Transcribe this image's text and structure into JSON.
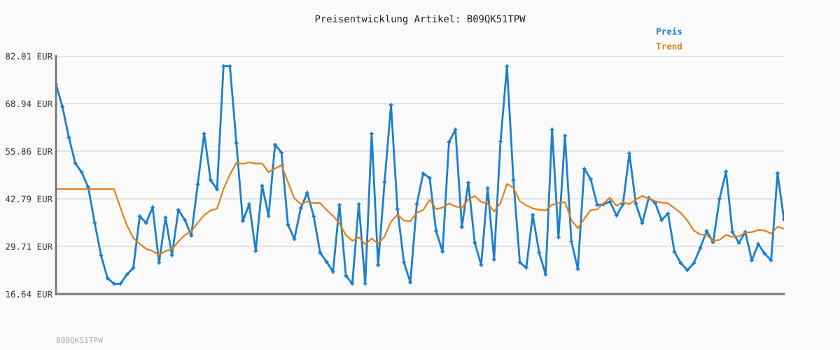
{
  "chart_data": {
    "type": "line",
    "title": "Preisentwicklung Artikel: B09QK51TPW",
    "categories": [
      null,
      null,
      null,
      null,
      null,
      null,
      null,
      null,
      null,
      null,
      null,
      null,
      null,
      null,
      null,
      null,
      null,
      null,
      null,
      null,
      null,
      null,
      null,
      null,
      null,
      null,
      null,
      null,
      null,
      null,
      null,
      null,
      null,
      null,
      null,
      null,
      null,
      null,
      null,
      null,
      null,
      null,
      null,
      null,
      null,
      null,
      null,
      null,
      null,
      null,
      null,
      null,
      null,
      null,
      null,
      null,
      null,
      null,
      null,
      null,
      null,
      null,
      null,
      null,
      null,
      null,
      null,
      null,
      null,
      null,
      null,
      null,
      null,
      null,
      null,
      null,
      null,
      null,
      null,
      null,
      null,
      null,
      null,
      null,
      null,
      null,
      null,
      null,
      null,
      null,
      null,
      null,
      null,
      null,
      null,
      null,
      null,
      null,
      null,
      null,
      null,
      null,
      null,
      null,
      null,
      null,
      null,
      null,
      null,
      null,
      null,
      null,
      null,
      null
    ],
    "series": [
      {
        "name": "Preis",
        "color": "#1a7fcf",
        "marker": "cross",
        "values": [
          74.19,
          68.1,
          59.64,
          52.53,
          50.03,
          45.99,
          36.18,
          27.21,
          20.99,
          19.46,
          19.46,
          21.96,
          23.81,
          37.98,
          36.18,
          40.48,
          25.23,
          37.66,
          27.28,
          39.71,
          37.02,
          32.72,
          46.76,
          60.67,
          47.91,
          45.41,
          79.19,
          79.19,
          58.1,
          36.7,
          41.31,
          28.43,
          46.37,
          38.04,
          57.65,
          55.48,
          35.67,
          31.76,
          40.22,
          44.45,
          37.98,
          27.98,
          25.48,
          22.73,
          41.12,
          21.64,
          19.46,
          41.31,
          19.46,
          60.67,
          24.59,
          47.34,
          68.55,
          39.97,
          25.35,
          19.84,
          41.31,
          49.77,
          48.49,
          33.94,
          28.3,
          58.36,
          61.82,
          35.03,
          47.21,
          30.74,
          24.65,
          45.67,
          26.12,
          58.55,
          79.19,
          47.91,
          25.29,
          23.88,
          38.36,
          27.98,
          21.96,
          61.82,
          32.15,
          60.09,
          31.06,
          23.49,
          51.05,
          48.17,
          41.12,
          41.25,
          42.02,
          38.17,
          41.25,
          55.28,
          41.5,
          36.06,
          43.04,
          41.63,
          36.95,
          38.75,
          28.17,
          25.1,
          23.17,
          25.1,
          29.26,
          33.94,
          30.86,
          42.79,
          50.28,
          33.68,
          30.67,
          33.68,
          25.87,
          30.35,
          27.72,
          25.87,
          49.83,
          37.15
        ]
      },
      {
        "name": "Trend",
        "color": "#e0801a",
        "marker": "none",
        "values": [
          45.48,
          45.48,
          45.48,
          45.48,
          45.48,
          45.48,
          45.48,
          45.48,
          45.48,
          45.48,
          40.35,
          35.54,
          32.02,
          30.42,
          29.01,
          28.43,
          27.41,
          28.43,
          28.94,
          31.06,
          32.85,
          33.81,
          36.18,
          38.3,
          39.58,
          40.09,
          45.48,
          49.45,
          52.66,
          52.4,
          52.78,
          52.46,
          52.46,
          50.09,
          51.12,
          52.02,
          47.4,
          42.91,
          41.31,
          42.08,
          41.63,
          41.63,
          39.71,
          38.11,
          36.0,
          32.85,
          31.25,
          32.21,
          30.29,
          31.89,
          30.48,
          32.47,
          36.5,
          38.43,
          36.82,
          36.63,
          38.94,
          39.71,
          42.53,
          39.97,
          40.35,
          41.5,
          40.67,
          40.29,
          42.59,
          43.55,
          41.89,
          41.5,
          39.32,
          41.63,
          46.89,
          45.8,
          42.14,
          40.99,
          40.16,
          39.77,
          39.58,
          41.12,
          41.63,
          41.89,
          36.95,
          34.71,
          37.27,
          39.71,
          39.9,
          41.5,
          43.1,
          40.86,
          41.89,
          41.31,
          42.59,
          43.55,
          42.91,
          42.14,
          41.76,
          41.5,
          40.22,
          38.88,
          36.82,
          34.07,
          32.98,
          32.79,
          31.25,
          31.51,
          32.85,
          32.34,
          32.47,
          33.49,
          33.62,
          34.2,
          34.07,
          33.24,
          35.09,
          34.58
        ]
      }
    ],
    "ylim": [
      16.64,
      82.01
    ],
    "yticks": [
      {
        "value": 16.64,
        "label": "16.64 EUR"
      },
      {
        "value": 29.71,
        "label": "29.71 EUR"
      },
      {
        "value": 42.79,
        "label": "42.79 EUR"
      },
      {
        "value": 55.86,
        "label": "55.86 EUR"
      },
      {
        "value": 68.94,
        "label": "68.94 EUR"
      },
      {
        "value": 82.01,
        "label": "82.01 EUR"
      }
    ],
    "grid": "y",
    "legend": "top right",
    "line_style": "solid",
    "annotations": [
      "B09QK51TPW"
    ]
  }
}
